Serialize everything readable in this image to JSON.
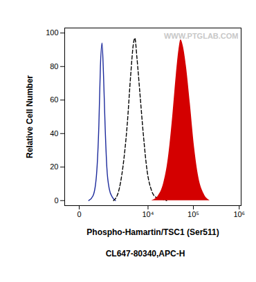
{
  "chart_data": {
    "type": "histogram_overlay",
    "xlabel": "Phospho-Hamartin/TSC1 (Ser511)",
    "ylabel": "Relative Cell Number",
    "caption": "CL647-80340,APC-H",
    "watermark": "WWW.PTGLAB.COM",
    "log": "x",
    "xlim": [
      -350,
      1100000
    ],
    "xticks": [
      0,
      {
        "value": 10000,
        "label": "10⁴"
      },
      {
        "value": 100000,
        "label": "10⁵"
      },
      {
        "value": 1000000,
        "label": "10⁶"
      }
    ],
    "ylim": [
      -3,
      103
    ],
    "yticks": [
      0,
      20,
      40,
      60,
      80,
      100
    ],
    "series": [
      {
        "type": "line",
        "color": "#1c2a9c",
        "line_style": "solid",
        "x": [
          200,
          330,
          450,
          550,
          620,
          700,
          780,
          870,
          980,
          1150,
          1400,
          1700
        ],
        "values": [
          0,
          3,
          15,
          45,
          80,
          94,
          75,
          45,
          20,
          7,
          2,
          0
        ]
      },
      {
        "type": "line",
        "color": "#000000",
        "line_style": "dashed",
        "x": [
          1500,
          2000,
          2600,
          3300,
          4000,
          4600,
          5000,
          5600,
          6500,
          7800,
          9500,
          12000,
          15000,
          20000,
          26000
        ],
        "values": [
          0,
          5,
          20,
          45,
          75,
          93,
          97,
          85,
          65,
          40,
          18,
          6,
          2,
          1,
          0
        ]
      },
      {
        "type": "area",
        "color": "#d40000",
        "line_style": "solid",
        "x": [
          12000,
          17000,
          22000,
          28000,
          35000,
          42000,
          48000,
          53000,
          60000,
          70000,
          85000,
          105000,
          130000,
          170000,
          230000
        ],
        "values": [
          0,
          3,
          10,
          25,
          50,
          75,
          90,
          96,
          92,
          80,
          58,
          32,
          14,
          4,
          0
        ]
      }
    ]
  }
}
